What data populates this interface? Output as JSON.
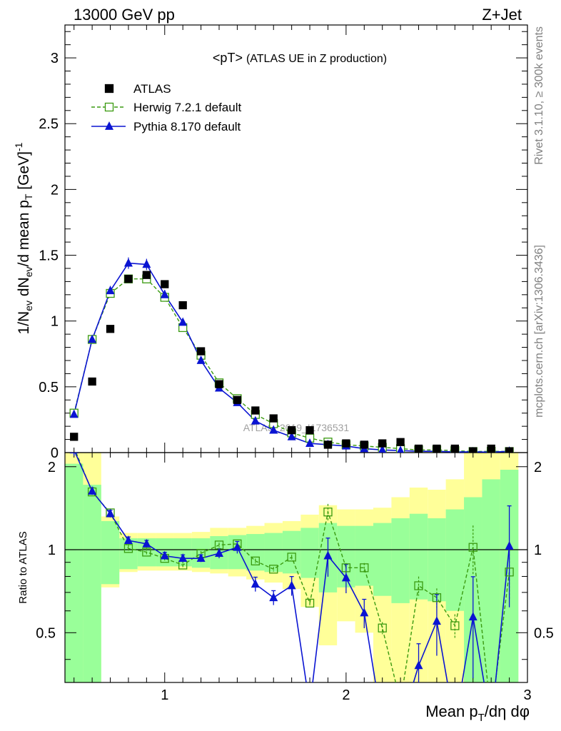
{
  "header": {
    "left": "13000 GeV pp",
    "right": "Z+Jet"
  },
  "side": {
    "rivet": "Rivet 3.1.10, ≥ 300k events",
    "mcplots": "mcplots.cern.ch [arXiv:1306.3436]"
  },
  "watermark": "ATLAS_2019_I1736531",
  "colors": {
    "data": "#000000",
    "herwig": "#3a9a10",
    "pythia": "#0a14d2",
    "band_inner": "#99ff99",
    "band_outer": "#ffff99"
  },
  "chart_data": {
    "type": "scatter",
    "title": "<pT> (ATLAS UE in Z production)",
    "xlabel": "Mean p_T/dη dφ",
    "ylabel": "1/N_ev dN_ev/d mean p_T [GeV]^-1",
    "ratio_ylabel": "Ratio to ATLAS",
    "xlim": [
      0.45,
      3.0
    ],
    "ylim": [
      0,
      3.25
    ],
    "ratio_ylim": [
      0.33,
      2.25
    ],
    "x_ticks": [
      1,
      2,
      3
    ],
    "y_ticks": [
      0,
      0.5,
      1,
      1.5,
      2,
      2.5,
      3
    ],
    "y_tick_labels": [
      "0",
      "0.5",
      "1",
      "1.5",
      "2",
      "2.5",
      "3"
    ],
    "ratio_ticks": [
      0.5,
      1,
      2
    ],
    "ratio_tick_labels": [
      "0.5",
      "1",
      "2"
    ],
    "legend": [
      "ATLAS",
      "Herwig 7.2.1 default",
      "Pythia 8.170 default"
    ],
    "legend_position": "top-left",
    "bin_edges": [
      0.45,
      0.55,
      0.65,
      0.75,
      0.85,
      0.95,
      1.05,
      1.15,
      1.25,
      1.35,
      1.45,
      1.55,
      1.65,
      1.75,
      1.85,
      1.95,
      2.05,
      2.15,
      2.25,
      2.35,
      2.45,
      2.55,
      2.65,
      2.75,
      2.85,
      2.95
    ],
    "x": [
      0.5,
      0.6,
      0.7,
      0.8,
      0.9,
      1.0,
      1.1,
      1.2,
      1.3,
      1.4,
      1.5,
      1.6,
      1.7,
      1.8,
      1.9,
      2.0,
      2.1,
      2.2,
      2.3,
      2.4,
      2.5,
      2.6,
      2.7,
      2.8,
      2.9
    ],
    "series": [
      {
        "name": "ATLAS",
        "values": [
          0.12,
          0.54,
          0.94,
          1.32,
          1.35,
          1.28,
          1.12,
          0.77,
          0.52,
          0.4,
          0.32,
          0.26,
          0.17,
          0.17,
          0.06,
          0.07,
          0.06,
          0.07,
          0.08,
          0.03,
          0.03,
          0.03,
          0.01,
          0.03,
          0.01
        ]
      },
      {
        "name": "Herwig 7.2.1 default",
        "values": [
          0.3,
          0.86,
          1.21,
          1.32,
          1.32,
          1.18,
          0.95,
          0.74,
          0.53,
          0.41,
          0.29,
          0.22,
          0.15,
          0.11,
          0.08,
          0.06,
          0.05,
          0.04,
          0.03,
          0.02,
          0.02,
          0.015,
          0.008,
          0.01,
          0.008
        ],
        "ratio": [
          2.35,
          1.62,
          1.36,
          1.01,
          0.98,
          0.93,
          0.88,
          0.97,
          1.04,
          1.05,
          0.91,
          0.85,
          0.94,
          0.64,
          1.37,
          0.86,
          0.86,
          0.52,
          0.28,
          0.74,
          0.67,
          0.53,
          1.02,
          0.25,
          0.83
        ]
      },
      {
        "name": "Pythia 8.170 default",
        "values": [
          0.29,
          0.86,
          1.23,
          1.44,
          1.43,
          1.2,
          0.99,
          0.7,
          0.49,
          0.38,
          0.24,
          0.17,
          0.12,
          0.07,
          0.06,
          0.05,
          0.03,
          0.02,
          0.015,
          0.01,
          0.01,
          0.005,
          0.006,
          0.003,
          0.01
        ],
        "ratio": [
          2.3,
          1.63,
          1.35,
          1.08,
          1.05,
          0.95,
          0.93,
          0.93,
          0.97,
          1.02,
          0.75,
          0.67,
          0.74,
          0.27,
          0.95,
          0.79,
          0.59,
          0.15,
          0.2,
          0.38,
          0.55,
          0.17,
          0.57,
          0.1,
          1.03
        ]
      }
    ],
    "herwig_err": [
      0.04,
      0.03,
      0.03,
      0.03,
      0.03,
      0.03,
      0.03,
      0.02,
      0.02,
      0.02,
      0.02,
      0.02,
      0.02,
      0.03,
      0.07,
      0.04,
      0.04,
      0.05,
      0.05,
      0.08,
      0.08,
      0.1,
      0.2,
      0.2,
      0.2
    ],
    "pythia_err": [
      0.05,
      0.03,
      0.03,
      0.03,
      0.03,
      0.03,
      0.03,
      0.03,
      0.04,
      0.05,
      0.06,
      0.06,
      0.08,
      0.1,
      0.16,
      0.12,
      0.12,
      0.1,
      0.1,
      0.2,
      0.25,
      0.3,
      0.4,
      0.4,
      0.4
    ],
    "band_inner": [
      [
        0.33,
        2.05
      ],
      [
        0.33,
        1.72
      ],
      [
        0.75,
        1.27
      ],
      [
        0.85,
        1.1
      ],
      [
        0.87,
        1.1
      ],
      [
        0.87,
        1.1
      ],
      [
        0.87,
        1.1
      ],
      [
        0.86,
        1.1
      ],
      [
        0.85,
        1.12
      ],
      [
        0.85,
        1.13
      ],
      [
        0.84,
        1.14
      ],
      [
        0.83,
        1.15
      ],
      [
        0.82,
        1.17
      ],
      [
        0.79,
        1.2
      ],
      [
        0.7,
        1.25
      ],
      [
        0.73,
        1.22
      ],
      [
        0.74,
        1.22
      ],
      [
        0.68,
        1.25
      ],
      [
        0.64,
        1.3
      ],
      [
        0.66,
        1.35
      ],
      [
        0.65,
        1.3
      ],
      [
        0.6,
        1.4
      ],
      [
        0.33,
        1.55
      ],
      [
        0.33,
        1.8
      ],
      [
        0.33,
        1.95
      ]
    ],
    "band_outer": [
      [
        0.33,
        2.25
      ],
      [
        0.33,
        2.25
      ],
      [
        0.73,
        1.32
      ],
      [
        0.83,
        1.15
      ],
      [
        0.84,
        1.15
      ],
      [
        0.84,
        1.15
      ],
      [
        0.84,
        1.15
      ],
      [
        0.83,
        1.16
      ],
      [
        0.82,
        1.2
      ],
      [
        0.8,
        1.2
      ],
      [
        0.78,
        1.22
      ],
      [
        0.76,
        1.25
      ],
      [
        0.72,
        1.27
      ],
      [
        0.62,
        1.34
      ],
      [
        0.45,
        1.45
      ],
      [
        0.55,
        1.4
      ],
      [
        0.5,
        1.4
      ],
      [
        0.33,
        1.42
      ],
      [
        0.33,
        1.55
      ],
      [
        0.33,
        1.68
      ],
      [
        0.33,
        1.65
      ],
      [
        0.33,
        1.8
      ],
      [
        0.33,
        2.25
      ],
      [
        0.33,
        2.25
      ],
      [
        0.33,
        2.25
      ]
    ]
  }
}
